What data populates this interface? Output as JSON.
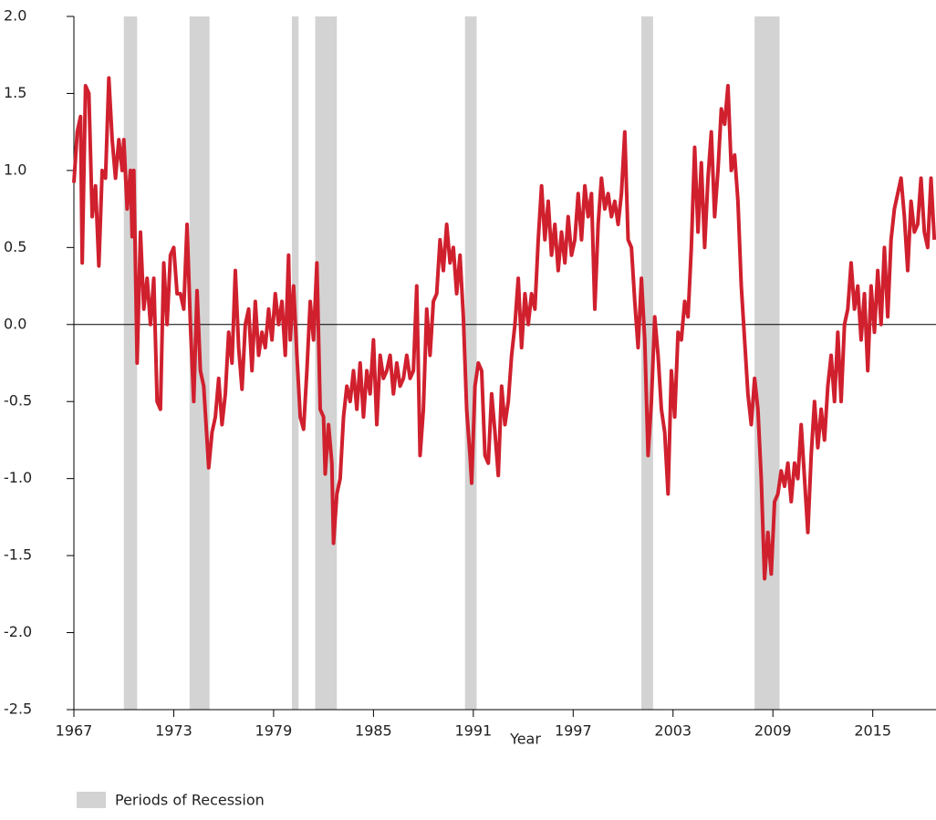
{
  "chart_data": {
    "type": "line",
    "xlabel": "Year",
    "xlim": [
      1967,
      2018.8
    ],
    "xticks": [
      1967,
      1973,
      1979,
      1985,
      1991,
      1997,
      2003,
      2009,
      2015
    ],
    "ylim": [
      -2.5,
      2.0
    ],
    "yticks": [
      {
        "value": 2.0,
        "label": "2.0"
      },
      {
        "value": 1.5,
        "label": "1.5"
      },
      {
        "value": 1.0,
        "label": "1.0"
      },
      {
        "value": 0.5,
        "label": "0.5"
      },
      {
        "value": 0,
        "label": "0.0"
      },
      -0.5,
      {
        "value": -1.0,
        "label": "-1.0"
      },
      -1.5,
      {
        "value": -2.0,
        "label": "-2.0"
      },
      -2.5
    ],
    "recession": {
      "name": "Periods of Recession",
      "color": "#d3d3d3",
      "periods": [
        [
          1970.0,
          1970.8
        ],
        [
          1973.95,
          1975.15
        ],
        [
          1980.1,
          1980.5
        ],
        [
          1981.5,
          1982.8
        ],
        [
          1990.5,
          1991.2
        ],
        [
          2001.1,
          2001.8
        ],
        [
          2007.9,
          2009.4
        ]
      ]
    },
    "series": [
      {
        "color": "#d0202e",
        "x": [
          1967.0,
          1967.2,
          1967.4,
          1967.5,
          1967.7,
          1967.9,
          1968.1,
          1968.3,
          1968.5,
          1968.7,
          1968.9,
          1969.1,
          1969.3,
          1969.5,
          1969.7,
          1969.9,
          1970.0,
          1970.2,
          1970.4,
          1970.5,
          1970.6,
          1970.8,
          1971.0,
          1971.2,
          1971.4,
          1971.6,
          1971.8,
          1972.0,
          1972.2,
          1972.4,
          1972.6,
          1972.8,
          1973.0,
          1973.2,
          1973.4,
          1973.6,
          1973.8,
          1974.0,
          1974.2,
          1974.4,
          1974.6,
          1974.8,
          1975.0,
          1975.1,
          1975.3,
          1975.5,
          1975.7,
          1975.9,
          1976.1,
          1976.3,
          1976.5,
          1976.7,
          1976.9,
          1977.1,
          1977.3,
          1977.5,
          1977.7,
          1977.9,
          1978.1,
          1978.3,
          1978.5,
          1978.7,
          1978.9,
          1979.1,
          1979.3,
          1979.5,
          1979.7,
          1979.9,
          1980.0,
          1980.2,
          1980.4,
          1980.6,
          1980.8,
          1981.0,
          1981.2,
          1981.4,
          1981.6,
          1981.8,
          1982.0,
          1982.1,
          1982.3,
          1982.5,
          1982.6,
          1982.8,
          1983.0,
          1983.2,
          1983.4,
          1983.6,
          1983.8,
          1984.0,
          1984.2,
          1984.4,
          1984.6,
          1984.8,
          1985.0,
          1985.2,
          1985.4,
          1985.6,
          1985.8,
          1986.0,
          1986.2,
          1986.4,
          1986.6,
          1986.8,
          1987.0,
          1987.2,
          1987.4,
          1987.6,
          1987.8,
          1988.0,
          1988.2,
          1988.4,
          1988.6,
          1988.8,
          1989.0,
          1989.2,
          1989.4,
          1989.6,
          1989.8,
          1990.0,
          1990.2,
          1990.4,
          1990.6,
          1990.8,
          1990.9,
          1991.1,
          1991.3,
          1991.5,
          1991.7,
          1991.9,
          1992.1,
          1992.3,
          1992.5,
          1992.7,
          1992.9,
          1993.1,
          1993.3,
          1993.5,
          1993.7,
          1993.9,
          1994.1,
          1994.3,
          1994.5,
          1994.7,
          1994.9,
          1995.1,
          1995.3,
          1995.5,
          1995.7,
          1995.9,
          1996.1,
          1996.3,
          1996.5,
          1996.7,
          1996.9,
          1997.1,
          1997.3,
          1997.5,
          1997.7,
          1997.9,
          1998.1,
          1998.3,
          1998.5,
          1998.7,
          1998.9,
          1999.1,
          1999.3,
          1999.5,
          1999.7,
          1999.9,
          2000.1,
          2000.3,
          2000.5,
          2000.7,
          2000.9,
          2001.1,
          2001.3,
          2001.5,
          2001.7,
          2001.9,
          2002.1,
          2002.3,
          2002.5,
          2002.7,
          2002.9,
          2003.1,
          2003.3,
          2003.5,
          2003.7,
          2003.9,
          2004.1,
          2004.3,
          2004.5,
          2004.7,
          2004.9,
          2005.1,
          2005.3,
          2005.5,
          2005.7,
          2005.9,
          2006.1,
          2006.3,
          2006.5,
          2006.7,
          2006.9,
          2007.1,
          2007.3,
          2007.5,
          2007.7,
          2007.9,
          2008.1,
          2008.3,
          2008.5,
          2008.7,
          2008.9,
          2009.1,
          2009.3,
          2009.5,
          2009.7,
          2009.9,
          2010.1,
          2010.3,
          2010.5,
          2010.7,
          2010.9,
          2011.1,
          2011.3,
          2011.5,
          2011.7,
          2011.9,
          2012.1,
          2012.3,
          2012.5,
          2012.7,
          2012.9,
          2013.1,
          2013.3,
          2013.5,
          2013.7,
          2013.9,
          2014.1,
          2014.3,
          2014.5,
          2014.7,
          2014.9,
          2015.1,
          2015.3,
          2015.5,
          2015.7,
          2015.9,
          2016.1,
          2016.3,
          2016.5,
          2016.7,
          2016.9,
          2017.1,
          2017.3,
          2017.5,
          2017.7,
          2017.9,
          2018.1,
          2018.3,
          2018.5,
          2018.7
        ],
        "values": [
          0.92,
          1.25,
          1.35,
          0.4,
          1.55,
          1.5,
          0.7,
          0.9,
          0.38,
          1.0,
          0.95,
          1.6,
          1.2,
          0.95,
          1.2,
          1.0,
          1.2,
          0.75,
          1.0,
          0.57,
          1.0,
          -0.25,
          0.6,
          0.1,
          0.3,
          0.0,
          0.3,
          -0.5,
          -0.55,
          0.4,
          0.0,
          0.45,
          0.5,
          0.2,
          0.2,
          0.1,
          0.65,
          0.0,
          -0.5,
          0.22,
          -0.3,
          -0.4,
          -0.75,
          -0.93,
          -0.7,
          -0.6,
          -0.35,
          -0.65,
          -0.45,
          -0.05,
          -0.25,
          0.35,
          -0.15,
          -0.42,
          0.0,
          0.1,
          -0.3,
          0.15,
          -0.2,
          -0.05,
          -0.15,
          0.1,
          -0.1,
          0.2,
          0.0,
          0.15,
          -0.2,
          0.45,
          -0.1,
          0.25,
          -0.2,
          -0.6,
          -0.68,
          -0.3,
          0.15,
          -0.1,
          0.4,
          -0.55,
          -0.6,
          -0.97,
          -0.65,
          -0.9,
          -1.42,
          -1.1,
          -1.0,
          -0.6,
          -0.4,
          -0.5,
          -0.3,
          -0.55,
          -0.25,
          -0.6,
          -0.3,
          -0.45,
          -0.1,
          -0.65,
          -0.2,
          -0.35,
          -0.3,
          -0.2,
          -0.45,
          -0.25,
          -0.4,
          -0.35,
          -0.2,
          -0.35,
          -0.3,
          0.25,
          -0.85,
          -0.55,
          0.1,
          -0.2,
          0.15,
          0.2,
          0.55,
          0.35,
          0.65,
          0.4,
          0.5,
          0.2,
          0.45,
          0.05,
          -0.55,
          -0.85,
          -1.03,
          -0.4,
          -0.25,
          -0.3,
          -0.85,
          -0.9,
          -0.45,
          -0.7,
          -0.98,
          -0.4,
          -0.65,
          -0.5,
          -0.2,
          0.0,
          0.3,
          -0.15,
          0.2,
          0.0,
          0.2,
          0.1,
          0.55,
          0.9,
          0.55,
          0.8,
          0.45,
          0.65,
          0.35,
          0.6,
          0.4,
          0.7,
          0.45,
          0.55,
          0.85,
          0.55,
          0.9,
          0.7,
          0.85,
          0.1,
          0.65,
          0.95,
          0.75,
          0.85,
          0.7,
          0.8,
          0.65,
          0.85,
          1.25,
          0.55,
          0.5,
          0.15,
          -0.15,
          0.3,
          -0.1,
          -0.85,
          -0.5,
          0.05,
          -0.2,
          -0.55,
          -0.7,
          -1.1,
          -0.3,
          -0.6,
          -0.05,
          -0.1,
          0.15,
          0.05,
          0.5,
          1.15,
          0.6,
          1.05,
          0.5,
          0.95,
          1.25,
          0.7,
          1.0,
          1.4,
          1.3,
          1.55,
          1.0,
          1.1,
          0.8,
          0.25,
          -0.1,
          -0.45,
          -0.65,
          -0.35,
          -0.55,
          -1.0,
          -1.65,
          -1.35,
          -1.62,
          -1.15,
          -1.1,
          -0.95,
          -1.05,
          -0.9,
          -1.15,
          -0.9,
          -1.0,
          -0.65,
          -1.0,
          -1.35,
          -0.85,
          -0.5,
          -0.8,
          -0.55,
          -0.75,
          -0.4,
          -0.2,
          -0.5,
          -0.05,
          -0.5,
          0.0,
          0.1,
          0.4,
          0.1,
          0.25,
          -0.1,
          0.2,
          -0.3,
          0.25,
          -0.05,
          0.35,
          0.0,
          0.5,
          0.05,
          0.55,
          0.75,
          0.85,
          0.95,
          0.7,
          0.35,
          0.8,
          0.6,
          0.65,
          0.95,
          0.6,
          0.5,
          0.95,
          0.55
        ]
      }
    ]
  }
}
